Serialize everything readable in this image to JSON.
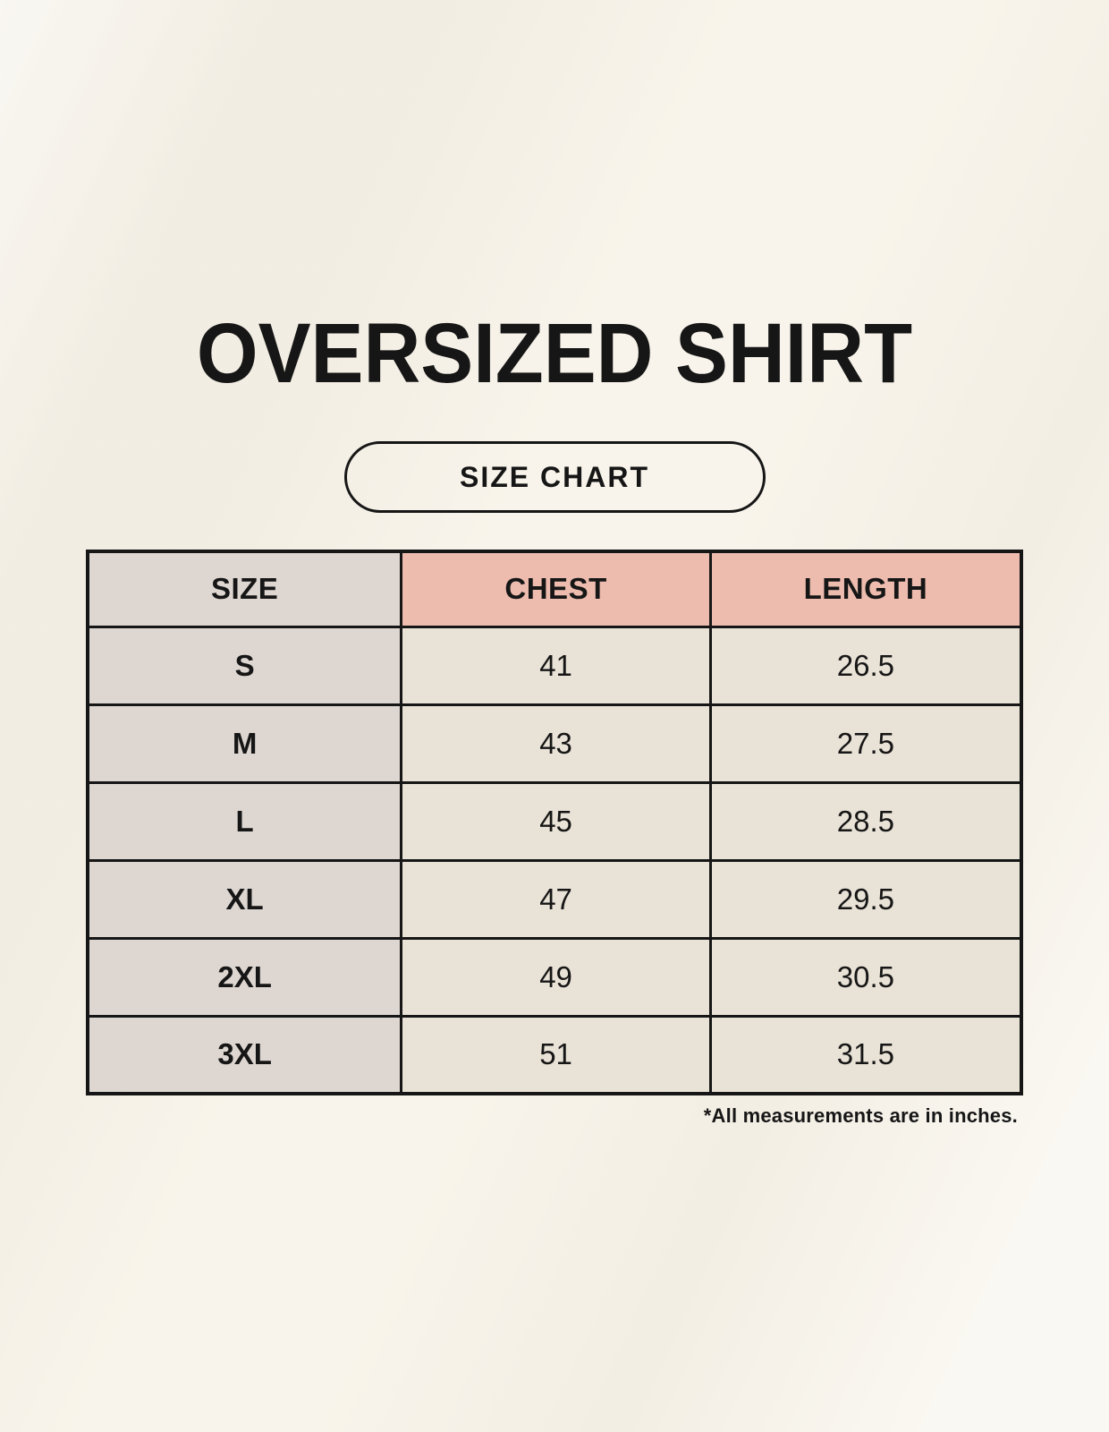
{
  "page": {
    "title": "OVERSIZED SHIRT",
    "size_chart_badge": "SIZE CHART",
    "footnote": "*All measurements are in inches."
  },
  "chart_data": {
    "type": "table",
    "title": "OVERSIZED SHIRT",
    "subtitle": "SIZE CHART",
    "columns": [
      "SIZE",
      "CHEST",
      "LENGTH"
    ],
    "rows": [
      [
        "S",
        "41",
        "26.5"
      ],
      [
        "M",
        "43",
        "27.5"
      ],
      [
        "L",
        "45",
        "28.5"
      ],
      [
        "XL",
        "47",
        "29.5"
      ],
      [
        "2XL",
        "49",
        "30.5"
      ],
      [
        "3XL",
        "51",
        "31.5"
      ]
    ],
    "units": "inches",
    "note": "*All measurements are in inches."
  },
  "colors": {
    "page_background": "#f8f4eb",
    "size_column_background": "#ddd6d1",
    "header_accent_background": "#edbcae",
    "cell_background": "#e9e2d6",
    "border": "#161616",
    "text": "#161616"
  }
}
